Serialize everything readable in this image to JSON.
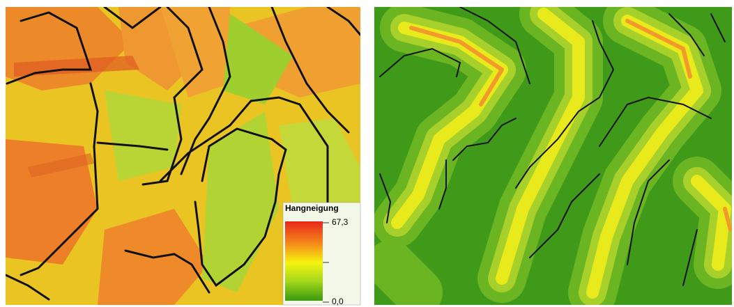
{
  "legend": {
    "title": "Hangneigung",
    "max_label": "67,3",
    "min_label": "0,0"
  }
}
